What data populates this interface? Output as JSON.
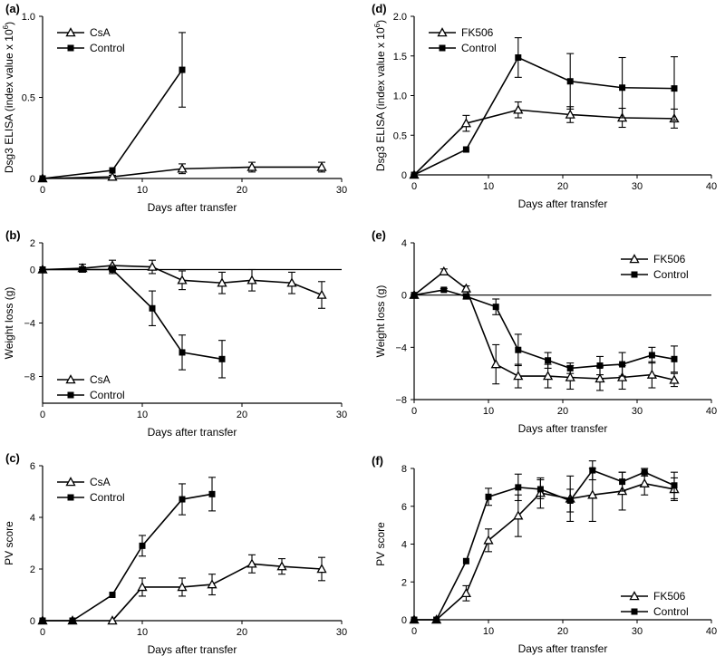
{
  "chart_data": [
    {
      "id": "a",
      "panel_label": "(a)",
      "type": "line",
      "ylabel_base": "Dsg3 ELISA (index value x 10",
      "ylabel_sup": "6",
      "ylabel_tail": ")",
      "xlabel": "Days after transfer",
      "xlim": [
        0,
        30
      ],
      "ylim": [
        0,
        1.0
      ],
      "xticks": [
        0,
        10,
        20,
        30
      ],
      "yticks": [
        0,
        0.5,
        1.0
      ],
      "ytick_labels": [
        "0",
        "0.5",
        "1.0"
      ],
      "legend_position": "top-left",
      "series": [
        {
          "name": "CsA",
          "marker": "triangle",
          "x": [
            0,
            7,
            14,
            21,
            28
          ],
          "y": [
            0,
            0.01,
            0.06,
            0.07,
            0.07
          ],
          "err": [
            0,
            0.01,
            0.03,
            0.03,
            0.03
          ]
        },
        {
          "name": "Control",
          "marker": "square",
          "x": [
            0,
            7,
            14
          ],
          "y": [
            0,
            0.05,
            0.67
          ],
          "err": [
            0,
            0,
            0.23
          ]
        }
      ]
    },
    {
      "id": "d",
      "panel_label": "(d)",
      "type": "line",
      "ylabel_base": "Dsg3 ELISA (index value x 10",
      "ylabel_sup": "6",
      "ylabel_tail": ")",
      "xlabel": "Days after transfer",
      "xlim": [
        0,
        40
      ],
      "ylim": [
        0,
        2.0
      ],
      "xticks": [
        0,
        10,
        20,
        30,
        40
      ],
      "yticks": [
        0,
        0.5,
        1.0,
        1.5,
        2.0
      ],
      "ytick_labels": [
        "0",
        "0.5",
        "1.0",
        "1.5",
        "2.0"
      ],
      "legend_position": "top-left",
      "series": [
        {
          "name": "FK506",
          "marker": "triangle",
          "x": [
            0,
            7,
            14,
            21,
            28,
            35
          ],
          "y": [
            0,
            0.65,
            0.82,
            0.76,
            0.72,
            0.71
          ],
          "err": [
            0,
            0.1,
            0.1,
            0.1,
            0.12,
            0.12
          ]
        },
        {
          "name": "Control",
          "marker": "square",
          "x": [
            0,
            7,
            14,
            21,
            28,
            35
          ],
          "y": [
            0,
            0.32,
            1.48,
            1.18,
            1.1,
            1.09
          ],
          "err": [
            0,
            0,
            0.25,
            0.35,
            0.38,
            0.4
          ]
        }
      ]
    },
    {
      "id": "b",
      "panel_label": "(b)",
      "type": "line",
      "ylabel": "Weight loss (g)",
      "xlabel": "Days after transfer",
      "xlim": [
        0,
        30
      ],
      "ylim": [
        -10,
        2
      ],
      "xticks": [
        0,
        10,
        20,
        30
      ],
      "yticks": [
        -8,
        -4,
        0,
        2
      ],
      "ytick_labels": [
        "−8",
        "−4",
        "0",
        "2"
      ],
      "zero_line": true,
      "legend_position": "bottom-left",
      "series": [
        {
          "name": "CsA",
          "marker": "triangle",
          "x": [
            0,
            4,
            7,
            11,
            14,
            18,
            21,
            25,
            28
          ],
          "y": [
            0,
            0.1,
            0.3,
            0.2,
            -0.8,
            -1.0,
            -0.8,
            -1.0,
            -1.9
          ],
          "err": [
            0,
            0.3,
            0.4,
            0.5,
            0.7,
            0.8,
            0.8,
            0.8,
            1.0
          ]
        },
        {
          "name": "Control",
          "marker": "square",
          "x": [
            0,
            4,
            7,
            11,
            14,
            18
          ],
          "y": [
            0,
            0,
            0,
            -2.9,
            -6.2,
            -6.7
          ],
          "err": [
            0,
            0.2,
            0.3,
            1.3,
            1.3,
            1.4
          ]
        }
      ]
    },
    {
      "id": "e",
      "panel_label": "(e)",
      "type": "line",
      "ylabel": "Weight loss (g)",
      "xlabel": "Days after transfer",
      "xlim": [
        0,
        40
      ],
      "ylim": [
        -8,
        4
      ],
      "xticks": [
        0,
        10,
        20,
        30,
        40
      ],
      "yticks": [
        -8,
        -4,
        0,
        4
      ],
      "ytick_labels": [
        "−8",
        "−4",
        "0",
        "4"
      ],
      "zero_line": true,
      "legend_position": "top-right",
      "series": [
        {
          "name": "FK506",
          "marker": "triangle",
          "x": [
            0,
            4,
            7,
            11,
            14,
            18,
            21,
            25,
            28,
            32,
            35
          ],
          "y": [
            0,
            1.8,
            0.5,
            -5.3,
            -6.2,
            -6.2,
            -6.3,
            -6.4,
            -6.3,
            -6.1,
            -6.5
          ],
          "err": [
            0,
            0.2,
            0.2,
            1.5,
            0.9,
            0.9,
            0.9,
            0.9,
            0.9,
            1.0,
            0.5
          ]
        },
        {
          "name": "Control",
          "marker": "square",
          "x": [
            0,
            4,
            7,
            11,
            14,
            18,
            21,
            25,
            28,
            32,
            35
          ],
          "y": [
            0,
            0.4,
            -0.1,
            -0.9,
            -4.2,
            -5.0,
            -5.6,
            -5.4,
            -5.3,
            -4.6,
            -4.9
          ],
          "err": [
            0,
            0.1,
            0.2,
            0.6,
            1.2,
            0.6,
            0.4,
            0.7,
            0.9,
            0.6,
            1.0
          ]
        }
      ]
    },
    {
      "id": "c",
      "panel_label": "(c)",
      "type": "line",
      "ylabel": "PV score",
      "xlabel": "Days after transfer",
      "xlim": [
        0,
        30
      ],
      "ylim": [
        0,
        6
      ],
      "xticks": [
        0,
        10,
        20,
        30
      ],
      "yticks": [
        0,
        2,
        4,
        6
      ],
      "ytick_labels": [
        "0",
        "2",
        "4",
        "6"
      ],
      "legend_position": "top-left",
      "series": [
        {
          "name": "CsA",
          "marker": "triangle",
          "x": [
            0,
            3,
            7,
            10,
            14,
            17,
            21,
            24,
            28
          ],
          "y": [
            0,
            0,
            0,
            1.3,
            1.3,
            1.4,
            2.2,
            2.1,
            2.0
          ],
          "err": [
            0,
            0,
            0,
            0.35,
            0.35,
            0.4,
            0.35,
            0.3,
            0.45
          ]
        },
        {
          "name": "Control",
          "marker": "square",
          "x": [
            0,
            3,
            7,
            10,
            14,
            17
          ],
          "y": [
            0,
            0,
            1.0,
            2.9,
            4.7,
            4.9
          ],
          "err": [
            0,
            0,
            0,
            0.4,
            0.6,
            0.65
          ]
        }
      ]
    },
    {
      "id": "f",
      "panel_label": "(f)",
      "type": "line",
      "ylabel": "PV score",
      "xlabel": "Days after transfer",
      "xlim": [
        0,
        40
      ],
      "ylim": [
        0,
        8
      ],
      "xticks": [
        0,
        10,
        20,
        30,
        40
      ],
      "yticks": [
        0,
        2,
        4,
        6,
        8
      ],
      "ytick_labels": [
        "0",
        "2",
        "4",
        "6",
        "8"
      ],
      "legend_position": "bottom-right",
      "series": [
        {
          "name": "FK506",
          "marker": "triangle",
          "x": [
            0,
            3,
            7,
            10,
            14,
            17,
            21,
            24,
            28,
            31,
            35
          ],
          "y": [
            0,
            0,
            1.4,
            4.2,
            5.5,
            6.7,
            6.4,
            6.6,
            6.8,
            7.2,
            6.9
          ],
          "err": [
            0,
            0,
            0.4,
            0.6,
            1.1,
            0.8,
            1.2,
            1.4,
            1.0,
            0.6,
            0.6
          ]
        },
        {
          "name": "Control",
          "marker": "square",
          "x": [
            0,
            3,
            7,
            10,
            14,
            17,
            21,
            24,
            28,
            31,
            35
          ],
          "y": [
            0,
            0,
            3.1,
            6.5,
            7.0,
            6.9,
            6.3,
            7.9,
            7.3,
            7.8,
            7.1
          ],
          "err": [
            0,
            0,
            0,
            0.45,
            0.7,
            0.5,
            0.6,
            0.5,
            0.5,
            0.2,
            0.7
          ]
        }
      ]
    }
  ]
}
